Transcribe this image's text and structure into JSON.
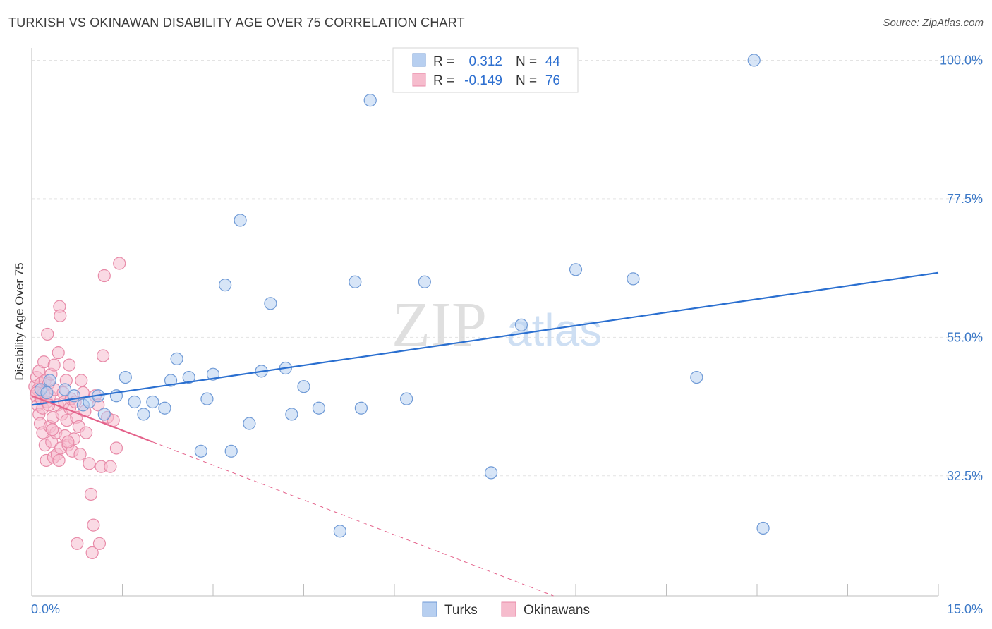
{
  "title": "TURKISH VS OKINAWAN DISABILITY AGE OVER 75 CORRELATION CHART",
  "source": "Source: ZipAtlas.com",
  "watermark": {
    "zip": "ZIP",
    "atlas": "atlas"
  },
  "legend": {
    "r_label": "R =",
    "n_label": "N =",
    "turks": {
      "r": "0.312",
      "n": "44"
    },
    "okinawans": {
      "r": "-0.149",
      "n": "76"
    }
  },
  "bottom_legend": {
    "turks": "Turks",
    "okinawans": "Okinawans"
  },
  "colors": {
    "turks_fill": "#b7cff0",
    "turks_stroke": "#6f9ad6",
    "turks_line": "#2a6fd0",
    "okinawans_fill": "#f6bccd",
    "okinawans_stroke": "#e88aa8",
    "okinawans_line": "#e4628b",
    "axis_text": "#3b78c7",
    "grid": "#e3e3e3"
  },
  "chart_data": {
    "type": "scatter",
    "title": "TURKISH VS OKINAWAN DISABILITY AGE OVER 75 CORRELATION CHART",
    "xlabel": "",
    "ylabel": "Disability Age Over 75",
    "xlim": [
      0,
      15
    ],
    "ylim": [
      13,
      102
    ],
    "x_tick_labels": [
      "0.0%",
      "15.0%"
    ],
    "y_ticks": [
      32.5,
      55.0,
      77.5,
      100.0
    ],
    "y_tick_labels": [
      "32.5%",
      "55.0%",
      "77.5%",
      "100.0%"
    ],
    "grid": true,
    "series": [
      {
        "name": "Turks",
        "points": [
          [
            0.15,
            46.5
          ],
          [
            0.3,
            48.0
          ],
          [
            0.55,
            46.5
          ],
          [
            0.7,
            45.5
          ],
          [
            0.85,
            44.0
          ],
          [
            0.95,
            44.5
          ],
          [
            1.1,
            45.5
          ],
          [
            1.2,
            42.5
          ],
          [
            1.4,
            45.5
          ],
          [
            1.55,
            48.5
          ],
          [
            1.7,
            44.5
          ],
          [
            1.85,
            42.5
          ],
          [
            2.0,
            44.5
          ],
          [
            2.2,
            43.5
          ],
          [
            2.3,
            48.0
          ],
          [
            2.4,
            51.5
          ],
          [
            2.6,
            48.5
          ],
          [
            2.8,
            36.5
          ],
          [
            2.9,
            45.0
          ],
          [
            3.0,
            49.0
          ],
          [
            3.2,
            63.5
          ],
          [
            3.3,
            36.5
          ],
          [
            3.45,
            74.0
          ],
          [
            3.6,
            41.0
          ],
          [
            3.8,
            49.5
          ],
          [
            3.95,
            60.5
          ],
          [
            4.2,
            50.0
          ],
          [
            4.3,
            42.5
          ],
          [
            4.5,
            47.0
          ],
          [
            4.75,
            43.5
          ],
          [
            5.1,
            23.5
          ],
          [
            5.35,
            64.0
          ],
          [
            5.45,
            43.5
          ],
          [
            5.6,
            93.5
          ],
          [
            6.2,
            45.0
          ],
          [
            6.5,
            64.0
          ],
          [
            7.6,
            33.0
          ],
          [
            8.1,
            57.0
          ],
          [
            9.0,
            66.0
          ],
          [
            9.95,
            64.5
          ],
          [
            11.0,
            48.5
          ],
          [
            11.95,
            100.0
          ],
          [
            12.1,
            24.0
          ],
          [
            0.25,
            46.0
          ]
        ]
      },
      {
        "name": "Okinawans",
        "points": [
          [
            0.05,
            47.0
          ],
          [
            0.07,
            45.5
          ],
          [
            0.08,
            48.5
          ],
          [
            0.1,
            44.0
          ],
          [
            0.1,
            46.5
          ],
          [
            0.12,
            42.5
          ],
          [
            0.12,
            49.5
          ],
          [
            0.14,
            41.0
          ],
          [
            0.15,
            47.5
          ],
          [
            0.16,
            45.0
          ],
          [
            0.18,
            39.5
          ],
          [
            0.18,
            43.5
          ],
          [
            0.2,
            46.0
          ],
          [
            0.2,
            51.0
          ],
          [
            0.22,
            48.0
          ],
          [
            0.22,
            37.5
          ],
          [
            0.24,
            35.0
          ],
          [
            0.25,
            44.5
          ],
          [
            0.26,
            55.5
          ],
          [
            0.28,
            47.5
          ],
          [
            0.3,
            40.5
          ],
          [
            0.3,
            45.5
          ],
          [
            0.32,
            49.0
          ],
          [
            0.33,
            38.0
          ],
          [
            0.35,
            42.0
          ],
          [
            0.36,
            35.5
          ],
          [
            0.37,
            50.5
          ],
          [
            0.38,
            46.5
          ],
          [
            0.4,
            39.5
          ],
          [
            0.42,
            36.0
          ],
          [
            0.43,
            44.0
          ],
          [
            0.44,
            52.5
          ],
          [
            0.45,
            35.0
          ],
          [
            0.46,
            60.0
          ],
          [
            0.47,
            58.5
          ],
          [
            0.48,
            37.0
          ],
          [
            0.5,
            42.5
          ],
          [
            0.52,
            46.0
          ],
          [
            0.54,
            44.5
          ],
          [
            0.55,
            39.0
          ],
          [
            0.57,
            48.0
          ],
          [
            0.58,
            41.5
          ],
          [
            0.6,
            37.5
          ],
          [
            0.62,
            50.5
          ],
          [
            0.63,
            43.5
          ],
          [
            0.65,
            45.0
          ],
          [
            0.67,
            36.5
          ],
          [
            0.7,
            38.5
          ],
          [
            0.72,
            44.5
          ],
          [
            0.74,
            42.0
          ],
          [
            0.75,
            21.5
          ],
          [
            0.78,
            40.5
          ],
          [
            0.8,
            36.0
          ],
          [
            0.82,
            48.0
          ],
          [
            0.85,
            46.0
          ],
          [
            0.88,
            43.0
          ],
          [
            0.9,
            39.5
          ],
          [
            0.95,
            34.5
          ],
          [
            0.98,
            29.5
          ],
          [
            1.0,
            20.0
          ],
          [
            1.02,
            24.5
          ],
          [
            1.05,
            45.5
          ],
          [
            1.1,
            44.0
          ],
          [
            1.12,
            21.5
          ],
          [
            1.15,
            34.0
          ],
          [
            1.18,
            52.0
          ],
          [
            1.2,
            65.0
          ],
          [
            1.25,
            42.0
          ],
          [
            1.3,
            34.0
          ],
          [
            1.35,
            41.5
          ],
          [
            1.4,
            37.0
          ],
          [
            1.45,
            67.0
          ],
          [
            0.6,
            38.0
          ],
          [
            0.34,
            40.0
          ],
          [
            0.28,
            44.0
          ],
          [
            0.08,
            46.0
          ]
        ]
      }
    ],
    "trend_lines": [
      {
        "name": "Turks",
        "x": [
          0,
          15
        ],
        "y": [
          44.0,
          65.5
        ],
        "style": "solid"
      },
      {
        "name": "Okinawans",
        "x": [
          0,
          2.0
        ],
        "y": [
          45.5,
          38.0
        ],
        "style": "solid"
      },
      {
        "name": "Okinawans",
        "x": [
          2.0,
          15
        ],
        "y": [
          38.0,
          -11.0
        ],
        "style": "dashed"
      }
    ]
  }
}
